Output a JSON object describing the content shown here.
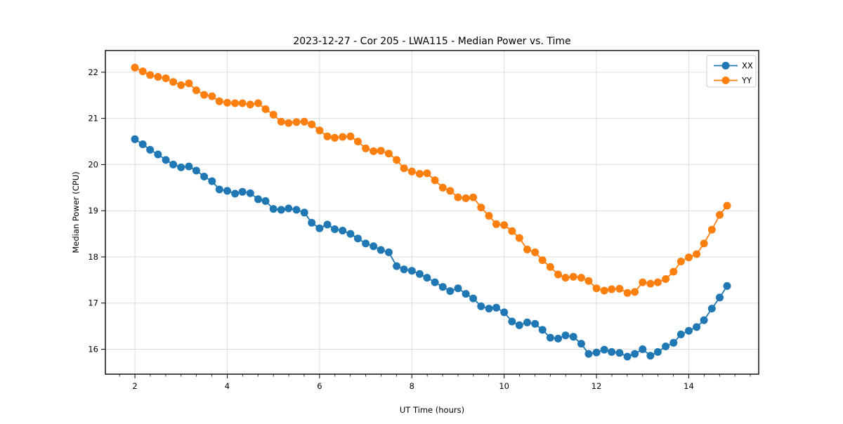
{
  "figure": {
    "title": "2023-12-27 - Cor 205 - LWA115 - Median Power vs. Time",
    "xlabel": "UT Time (hours)",
    "ylabel": "Median Power (CPU)"
  },
  "legend": {
    "position": "upper right",
    "items": [
      {
        "label": "XX",
        "color": "#1f77b4"
      },
      {
        "label": "YY",
        "color": "#ff7f0e"
      }
    ]
  },
  "chart_data": {
    "type": "line",
    "title": "2023-12-27 - Cor 205 - LWA115 - Median Power vs. Time",
    "xlabel": "UT Time (hours)",
    "ylabel": "Median Power (CPU)",
    "grid": true,
    "legend_position": "upper right",
    "marker": "o",
    "xlim": [
      1.36,
      15.515
    ],
    "ylim": [
      15.46,
      22.47
    ],
    "xticks": [
      2,
      4,
      6,
      8,
      10,
      12,
      14
    ],
    "yticks": [
      16,
      17,
      18,
      19,
      20,
      21,
      22
    ],
    "x_minor_step": 0.3333,
    "x": [
      2.0,
      2.17,
      2.33,
      2.5,
      2.67,
      2.83,
      3.0,
      3.17,
      3.33,
      3.5,
      3.67,
      3.83,
      4.0,
      4.17,
      4.33,
      4.5,
      4.67,
      4.83,
      5.0,
      5.17,
      5.33,
      5.5,
      5.67,
      5.83,
      6.0,
      6.17,
      6.33,
      6.5,
      6.67,
      6.83,
      7.0,
      7.17,
      7.33,
      7.5,
      7.67,
      7.83,
      8.0,
      8.17,
      8.33,
      8.5,
      8.67,
      8.83,
      9.0,
      9.17,
      9.33,
      9.5,
      9.67,
      9.83,
      10.0,
      10.17,
      10.33,
      10.5,
      10.67,
      10.83,
      11.0,
      11.17,
      11.33,
      11.5,
      11.67,
      11.83,
      12.0,
      12.17,
      12.33,
      12.5,
      12.67,
      12.83,
      13.0,
      13.17,
      13.33,
      13.5,
      13.67,
      13.83,
      14.0,
      14.17,
      14.33,
      14.5,
      14.67,
      14.83
    ],
    "series": [
      {
        "name": "XX",
        "color": "#1f77b4",
        "values": [
          20.55,
          20.44,
          20.32,
          20.22,
          20.1,
          20.0,
          19.94,
          19.96,
          19.87,
          19.74,
          19.64,
          19.46,
          19.43,
          19.37,
          19.41,
          19.38,
          19.25,
          19.21,
          19.04,
          19.02,
          19.05,
          19.02,
          18.96,
          18.74,
          18.62,
          18.7,
          18.6,
          18.57,
          18.5,
          18.4,
          18.29,
          18.23,
          18.15,
          18.1,
          17.8,
          17.73,
          17.7,
          17.63,
          17.55,
          17.45,
          17.35,
          17.26,
          17.32,
          17.2,
          17.1,
          16.93,
          16.88,
          16.9,
          16.8,
          16.6,
          16.52,
          16.58,
          16.55,
          16.42,
          16.25,
          16.23,
          16.3,
          16.27,
          16.12,
          15.9,
          15.93,
          15.99,
          15.94,
          15.92,
          15.84,
          15.9,
          16.0,
          15.86,
          15.94,
          16.06,
          16.14,
          16.32,
          16.4,
          16.48,
          16.63,
          16.88,
          17.12,
          17.37
        ]
      },
      {
        "name": "YY",
        "color": "#ff7f0e",
        "values": [
          22.1,
          22.02,
          21.94,
          21.9,
          21.87,
          21.79,
          21.72,
          21.76,
          21.61,
          21.51,
          21.48,
          21.37,
          21.34,
          21.33,
          21.33,
          21.3,
          21.33,
          21.2,
          21.08,
          20.93,
          20.9,
          20.92,
          20.93,
          20.87,
          20.74,
          20.61,
          20.58,
          20.6,
          20.61,
          20.5,
          20.35,
          20.29,
          20.3,
          20.24,
          20.1,
          19.92,
          19.85,
          19.8,
          19.81,
          19.66,
          19.5,
          19.43,
          19.29,
          19.27,
          19.29,
          19.07,
          18.89,
          18.71,
          18.69,
          18.56,
          18.41,
          18.16,
          18.1,
          17.93,
          17.78,
          17.62,
          17.55,
          17.57,
          17.55,
          17.48,
          17.32,
          17.27,
          17.3,
          17.31,
          17.22,
          17.24,
          17.45,
          17.42,
          17.45,
          17.52,
          17.68,
          17.9,
          17.99,
          18.06,
          18.29,
          18.59,
          18.91,
          19.11
        ]
      }
    ]
  },
  "style": {
    "grid_color": "#dcdcdc",
    "spine_color": "#000000",
    "background": "#ffffff",
    "legend_border": "#cccccc"
  }
}
